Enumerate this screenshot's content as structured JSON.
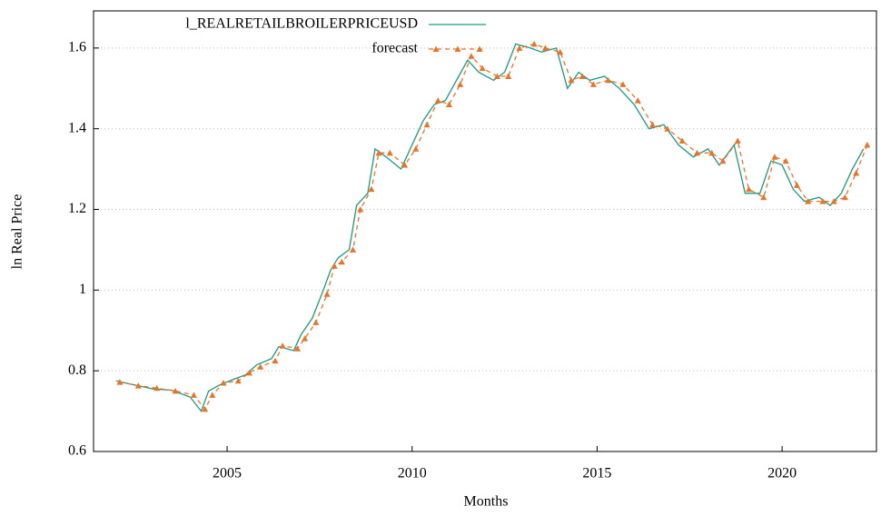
{
  "chart_data": {
    "type": "line",
    "x_label": "Months",
    "y_label": "ln Real Price",
    "xlim": [
      2001.39,
      2022.55
    ],
    "ylim": [
      0.6,
      1.692
    ],
    "xticks": [
      2005,
      2010,
      2015,
      2020
    ],
    "yticks": [
      0.6,
      0.8,
      1,
      1.2,
      1.4,
      1.6
    ],
    "grid": true,
    "legend": "top",
    "series": [
      {
        "name": "l_REALRETAILBROILERPRICEUSD",
        "color": "#1a9c80",
        "style": "solid",
        "x": [
          2002.0,
          2002.5,
          2003.0,
          2003.5,
          2004.0,
          2004.3,
          2004.5,
          2004.8,
          2005.2,
          2005.5,
          2005.8,
          2006.2,
          2006.4,
          2006.8,
          2007.0,
          2007.3,
          2007.6,
          2007.8,
          2008.0,
          2008.3,
          2008.5,
          2008.8,
          2009.0,
          2009.3,
          2009.7,
          2010.0,
          2010.3,
          2010.6,
          2010.9,
          2011.2,
          2011.5,
          2011.8,
          2012.2,
          2012.5,
          2012.8,
          2013.2,
          2013.5,
          2013.9,
          2014.2,
          2014.5,
          2014.8,
          2015.2,
          2015.6,
          2016.0,
          2016.4,
          2016.8,
          2017.2,
          2017.6,
          2018.0,
          2018.3,
          2018.7,
          2019.0,
          2019.4,
          2019.7,
          2020.0,
          2020.3,
          2020.6,
          2021.0,
          2021.3,
          2021.6,
          2021.9,
          2022.2
        ],
        "values": [
          0.775,
          0.765,
          0.755,
          0.752,
          0.735,
          0.7,
          0.75,
          0.765,
          0.78,
          0.79,
          0.815,
          0.83,
          0.86,
          0.85,
          0.89,
          0.93,
          1.0,
          1.05,
          1.08,
          1.1,
          1.21,
          1.24,
          1.35,
          1.33,
          1.3,
          1.36,
          1.42,
          1.46,
          1.47,
          1.52,
          1.57,
          1.54,
          1.52,
          1.54,
          1.61,
          1.6,
          1.59,
          1.6,
          1.5,
          1.54,
          1.52,
          1.53,
          1.5,
          1.46,
          1.4,
          1.41,
          1.36,
          1.33,
          1.35,
          1.31,
          1.36,
          1.24,
          1.24,
          1.32,
          1.31,
          1.25,
          1.22,
          1.23,
          1.21,
          1.24,
          1.3,
          1.35
        ]
      },
      {
        "name": "forecast",
        "color": "#e8742a",
        "style": "dashed",
        "x": [
          2002.1,
          2002.6,
          2003.1,
          2003.6,
          2004.1,
          2004.4,
          2004.6,
          2004.9,
          2005.3,
          2005.6,
          2005.9,
          2006.3,
          2006.5,
          2006.9,
          2007.1,
          2007.4,
          2007.7,
          2007.9,
          2008.1,
          2008.4,
          2008.6,
          2008.9,
          2009.1,
          2009.4,
          2009.8,
          2010.1,
          2010.4,
          2010.7,
          2011.0,
          2011.3,
          2011.6,
          2011.9,
          2012.3,
          2012.6,
          2012.9,
          2013.3,
          2013.6,
          2014.0,
          2014.3,
          2014.6,
          2014.9,
          2015.3,
          2015.7,
          2016.1,
          2016.5,
          2016.9,
          2017.3,
          2017.7,
          2018.1,
          2018.4,
          2018.8,
          2019.1,
          2019.5,
          2019.8,
          2020.1,
          2020.4,
          2020.7,
          2021.1,
          2021.4,
          2021.7,
          2022.0,
          2022.3
        ],
        "values": [
          0.772,
          0.763,
          0.757,
          0.75,
          0.74,
          0.705,
          0.74,
          0.77,
          0.775,
          0.795,
          0.81,
          0.825,
          0.862,
          0.855,
          0.88,
          0.92,
          0.99,
          1.06,
          1.07,
          1.1,
          1.2,
          1.25,
          1.34,
          1.34,
          1.31,
          1.35,
          1.41,
          1.47,
          1.46,
          1.51,
          1.58,
          1.55,
          1.53,
          1.53,
          1.6,
          1.61,
          1.6,
          1.59,
          1.52,
          1.53,
          1.51,
          1.52,
          1.51,
          1.47,
          1.41,
          1.4,
          1.37,
          1.34,
          1.34,
          1.32,
          1.37,
          1.25,
          1.23,
          1.33,
          1.32,
          1.26,
          1.22,
          1.22,
          1.22,
          1.23,
          1.29,
          1.36
        ]
      }
    ]
  }
}
